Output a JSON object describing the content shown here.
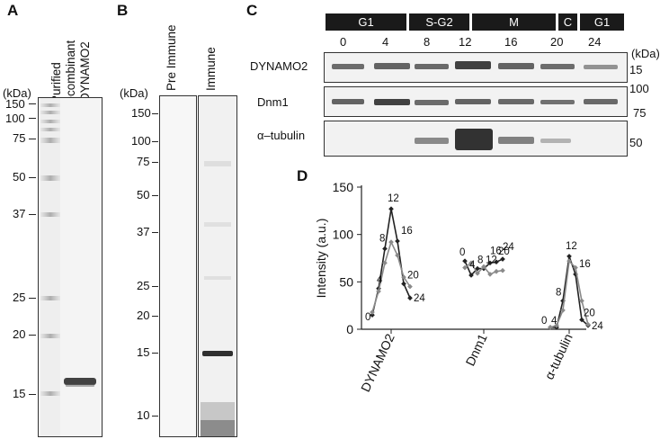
{
  "panel_a": {
    "letter": "A",
    "lane_labels": [
      "Purified",
      "recombinant",
      "DYNAMO2"
    ],
    "unit": "(kDa)",
    "markers": [
      "150",
      "100",
      "75",
      "50",
      "37",
      "25",
      "20",
      "15"
    ]
  },
  "panel_b": {
    "letter": "B",
    "unit": "(kDa)",
    "markers": [
      "150",
      "100",
      "75",
      "50",
      "37",
      "25",
      "20",
      "15",
      "10"
    ],
    "lanes": [
      "Pre Immune",
      "Immune"
    ]
  },
  "panel_c": {
    "letter": "C",
    "phases": [
      "G1",
      "S-G2",
      "M",
      "C",
      "G1"
    ],
    "timepoints": [
      "0",
      "4",
      "8",
      "12",
      "16",
      "20",
      "24"
    ],
    "unit": "(kDa)",
    "rows": [
      {
        "label": "DYNAMO2",
        "markers": [
          "15"
        ]
      },
      {
        "label": "Dnm1",
        "markers": [
          "100",
          "75"
        ]
      },
      {
        "label": "α–tubulin",
        "markers": [
          "50"
        ]
      }
    ]
  },
  "panel_d": {
    "letter": "D",
    "chart_data": {
      "type": "line",
      "title": "",
      "ylabel": "Intensity (a.u.)",
      "ylim": [
        0,
        150
      ],
      "yticks": [
        "0",
        "50",
        "100",
        "150"
      ],
      "groups": [
        "DYNAMO2",
        "Dnm1",
        "α-tubulin"
      ],
      "timepoints": [
        "0",
        "4",
        "8",
        "12",
        "16",
        "20",
        "24"
      ],
      "series": [
        {
          "group": "DYNAMO2",
          "replicate": 1,
          "color": "#222222",
          "values": [
            15,
            43,
            85,
            127,
            93,
            48,
            33
          ]
        },
        {
          "group": "DYNAMO2",
          "replicate": 2,
          "color": "#8a8a8a",
          "values": [
            18,
            40,
            70,
            92,
            78,
            55,
            45
          ]
        },
        {
          "group": "Dnm1",
          "replicate": 1,
          "color": "#222222",
          "values": [
            72,
            57,
            64,
            64,
            70,
            71,
            74
          ]
        },
        {
          "group": "Dnm1",
          "replicate": 2,
          "color": "#8a8a8a",
          "values": [
            65,
            70,
            59,
            66,
            58,
            61,
            62
          ]
        },
        {
          "group": "α-tubulin",
          "replicate": 1,
          "color": "#222222",
          "values": [
            2,
            2,
            30,
            77,
            58,
            10,
            4
          ]
        },
        {
          "group": "α-tubulin",
          "replicate": 2,
          "color": "#8a8a8a",
          "values": [
            2,
            4,
            20,
            72,
            65,
            30,
            5
          ]
        }
      ],
      "point_labels": [
        {
          "group": "DYNAMO2",
          "labels": [
            "0",
            "4",
            "8",
            "12",
            "16",
            "20",
            "24"
          ]
        },
        {
          "group": "Dnm1",
          "labels": [
            "0",
            "4",
            "8",
            "12",
            "16",
            "20",
            "24"
          ]
        },
        {
          "group": "α-tubulin",
          "labels": [
            "0",
            "4",
            "8",
            "12",
            "16",
            "20",
            "24"
          ]
        }
      ]
    }
  }
}
